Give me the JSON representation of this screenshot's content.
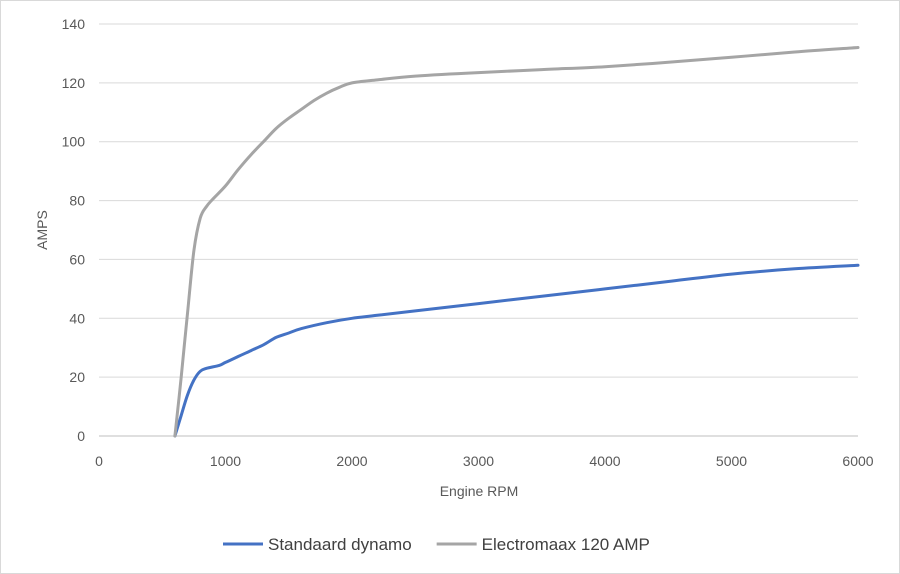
{
  "chart_data": {
    "type": "line",
    "title": "",
    "xlabel": "Engine RPM",
    "ylabel": "AMPS",
    "xlim": [
      0,
      6000
    ],
    "ylim": [
      0,
      140
    ],
    "x_ticks": [
      0,
      1000,
      2000,
      3000,
      4000,
      5000,
      6000
    ],
    "y_ticks": [
      0,
      20,
      40,
      60,
      80,
      100,
      120,
      140
    ],
    "grid": "horizontal",
    "legend_position": "bottom",
    "series": [
      {
        "name": "Standaard dynamo",
        "color": "#4472c4",
        "points": [
          [
            600,
            0
          ],
          [
            650,
            7
          ],
          [
            700,
            14
          ],
          [
            750,
            19
          ],
          [
            800,
            22
          ],
          [
            850,
            23
          ],
          [
            950,
            24
          ],
          [
            1000,
            25
          ],
          [
            1100,
            27
          ],
          [
            1200,
            29
          ],
          [
            1300,
            31
          ],
          [
            1400,
            33.5
          ],
          [
            1500,
            35
          ],
          [
            1600,
            36.5
          ],
          [
            1800,
            38.5
          ],
          [
            2000,
            40
          ],
          [
            2200,
            41
          ],
          [
            2500,
            42.5
          ],
          [
            3000,
            45
          ],
          [
            3500,
            47.5
          ],
          [
            4000,
            50
          ],
          [
            4500,
            52.5
          ],
          [
            5000,
            55
          ],
          [
            5500,
            56.8
          ],
          [
            6000,
            58
          ]
        ]
      },
      {
        "name": "Electromaax 120 AMP",
        "color": "#a5a5a5",
        "points": [
          [
            600,
            0
          ],
          [
            650,
            20
          ],
          [
            700,
            42
          ],
          [
            750,
            63
          ],
          [
            800,
            74
          ],
          [
            850,
            78
          ],
          [
            900,
            80.5
          ],
          [
            1000,
            85
          ],
          [
            1100,
            90.5
          ],
          [
            1200,
            95.5
          ],
          [
            1300,
            100
          ],
          [
            1400,
            104.5
          ],
          [
            1500,
            108
          ],
          [
            1600,
            111
          ],
          [
            1700,
            114
          ],
          [
            1800,
            116.5
          ],
          [
            1900,
            118.5
          ],
          [
            2000,
            120
          ],
          [
            2200,
            121
          ],
          [
            2500,
            122.3
          ],
          [
            3000,
            123.5
          ],
          [
            3500,
            124.5
          ],
          [
            4000,
            125.5
          ],
          [
            4500,
            127
          ],
          [
            5000,
            128.7
          ],
          [
            5500,
            130.5
          ],
          [
            6000,
            132
          ]
        ]
      }
    ]
  }
}
